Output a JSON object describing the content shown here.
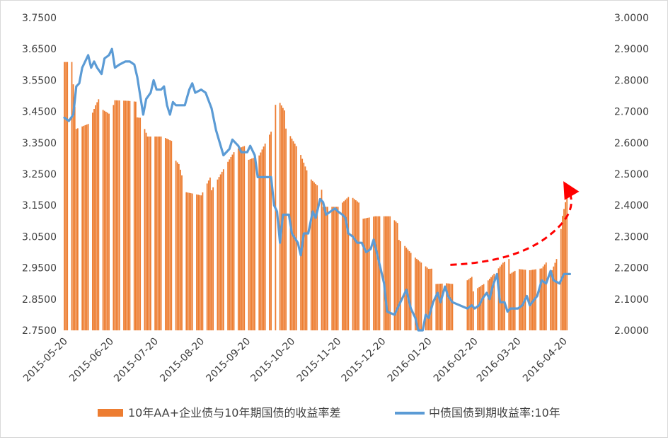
{
  "chart_data": {
    "type": "bar+line",
    "title": "",
    "x_ticks": [
      "2015-05-20",
      "2015-06-20",
      "2015-07-20",
      "2015-08-20",
      "2015-09-20",
      "2015-10-20",
      "2015-11-20",
      "2015-12-20",
      "2016-01-20",
      "2016-02-20",
      "2016-03-20",
      "2016-04-20"
    ],
    "y_left": {
      "ticks": [
        "2.7500",
        "2.8500",
        "2.9500",
        "3.0500",
        "3.1500",
        "3.2500",
        "3.3500",
        "3.4500",
        "3.5500",
        "3.6500",
        "3.7500"
      ],
      "range": [
        2.75,
        3.75
      ]
    },
    "y_right": {
      "ticks": [
        "2.0000",
        "2.1000",
        "2.2000",
        "2.3000",
        "2.4000",
        "2.5000",
        "2.6000",
        "2.7000",
        "2.8000",
        "2.9000",
        "3.0000"
      ],
      "range": [
        2.0,
        3.0
      ]
    },
    "grid": false,
    "legend_position": "bottom",
    "series": [
      {
        "name": "10年AA+企业债与10年期国债的收益率差",
        "kind": "bar",
        "axis": "left",
        "color": "#ED7D31",
        "keypoints": [
          {
            "x": "2015-05-20",
            "y": 3.63
          },
          {
            "x": "2015-05-25",
            "y": 3.62
          },
          {
            "x": "2015-05-28",
            "y": 3.4
          },
          {
            "x": "2015-06-05",
            "y": 3.4
          },
          {
            "x": "2015-06-10",
            "y": 3.45
          },
          {
            "x": "2015-06-14",
            "y": 3.48
          },
          {
            "x": "2015-06-20",
            "y": 3.45
          },
          {
            "x": "2015-06-23",
            "y": 3.49
          },
          {
            "x": "2015-07-02",
            "y": 3.47
          },
          {
            "x": "2015-07-10",
            "y": 3.45
          },
          {
            "x": "2015-07-15",
            "y": 3.38
          },
          {
            "x": "2015-07-25",
            "y": 3.36
          },
          {
            "x": "2015-08-01",
            "y": 3.33
          },
          {
            "x": "2015-08-05",
            "y": 3.3
          },
          {
            "x": "2015-08-10",
            "y": 3.2
          },
          {
            "x": "2015-08-20",
            "y": 3.17
          },
          {
            "x": "2015-08-28",
            "y": 3.23
          },
          {
            "x": "2015-09-05",
            "y": 3.28
          },
          {
            "x": "2015-09-12",
            "y": 3.32
          },
          {
            "x": "2015-09-20",
            "y": 3.32
          },
          {
            "x": "2015-09-28",
            "y": 3.32
          },
          {
            "x": "2015-10-06",
            "y": 3.38
          },
          {
            "x": "2015-10-07",
            "y": null
          },
          {
            "x": "2015-10-08",
            "y": 3.46
          },
          {
            "x": "2015-10-12",
            "y": 3.46
          },
          {
            "x": "2015-10-18",
            "y": 3.4
          },
          {
            "x": "2015-10-25",
            "y": 3.33
          },
          {
            "x": "2015-11-01",
            "y": 3.23
          },
          {
            "x": "2015-11-10",
            "y": 3.17
          },
          {
            "x": "2015-11-20",
            "y": 3.15
          },
          {
            "x": "2015-11-28",
            "y": 3.17
          },
          {
            "x": "2015-12-05",
            "y": 3.13
          },
          {
            "x": "2015-12-15",
            "y": 3.12
          },
          {
            "x": "2015-12-25",
            "y": 3.1
          },
          {
            "x": "2016-01-02",
            "y": 3.05
          },
          {
            "x": "2016-01-10",
            "y": 2.99
          },
          {
            "x": "2016-01-20",
            "y": 2.93
          },
          {
            "x": "2016-02-01",
            "y": 2.91
          },
          {
            "x": "2016-02-05",
            "y": 2.9
          },
          {
            "x": "2016-02-06",
            "y": null
          },
          {
            "x": "2016-02-13",
            "y": null
          },
          {
            "x": "2016-02-14",
            "y": 2.89
          },
          {
            "x": "2016-02-20",
            "y": 2.9
          },
          {
            "x": "2016-02-28",
            "y": 2.91
          },
          {
            "x": "2016-03-05",
            "y": 2.93
          },
          {
            "x": "2016-03-10",
            "y": 2.95
          },
          {
            "x": "2016-03-20",
            "y": 2.96
          },
          {
            "x": "2016-03-28",
            "y": 2.94
          },
          {
            "x": "2016-04-05",
            "y": 2.93
          },
          {
            "x": "2016-04-12",
            "y": 2.96
          },
          {
            "x": "2016-04-16",
            "y": 3.0
          },
          {
            "x": "2016-04-19",
            "y": 3.12
          },
          {
            "x": "2016-04-22",
            "y": 3.18
          }
        ]
      },
      {
        "name": "中债国债到期收益率:10年",
        "kind": "line",
        "axis": "right",
        "color": "#5B9BD5",
        "keypoints": [
          {
            "x": "2015-05-20",
            "y": 2.68
          },
          {
            "x": "2015-05-23",
            "y": 2.67
          },
          {
            "x": "2015-05-26",
            "y": 2.69
          },
          {
            "x": "2015-05-28",
            "y": 2.78
          },
          {
            "x": "2015-05-30",
            "y": 2.79
          },
          {
            "x": "2015-06-01",
            "y": 2.84
          },
          {
            "x": "2015-06-05",
            "y": 2.88
          },
          {
            "x": "2015-06-07",
            "y": 2.84
          },
          {
            "x": "2015-06-09",
            "y": 2.86
          },
          {
            "x": "2015-06-11",
            "y": 2.84
          },
          {
            "x": "2015-06-14",
            "y": 2.82
          },
          {
            "x": "2015-06-16",
            "y": 2.87
          },
          {
            "x": "2015-06-19",
            "y": 2.88
          },
          {
            "x": "2015-06-21",
            "y": 2.9
          },
          {
            "x": "2015-06-23",
            "y": 2.84
          },
          {
            "x": "2015-06-26",
            "y": 2.85
          },
          {
            "x": "2015-06-30",
            "y": 2.86
          },
          {
            "x": "2015-07-03",
            "y": 2.86
          },
          {
            "x": "2015-07-06",
            "y": 2.85
          },
          {
            "x": "2015-07-08",
            "y": 2.81
          },
          {
            "x": "2015-07-10",
            "y": 2.75
          },
          {
            "x": "2015-07-12",
            "y": 2.69
          },
          {
            "x": "2015-07-14",
            "y": 2.74
          },
          {
            "x": "2015-07-17",
            "y": 2.76
          },
          {
            "x": "2015-07-19",
            "y": 2.8
          },
          {
            "x": "2015-07-21",
            "y": 2.77
          },
          {
            "x": "2015-07-24",
            "y": 2.77
          },
          {
            "x": "2015-07-26",
            "y": 2.78
          },
          {
            "x": "2015-07-28",
            "y": 2.72
          },
          {
            "x": "2015-07-30",
            "y": 2.69
          },
          {
            "x": "2015-08-01",
            "y": 2.73
          },
          {
            "x": "2015-08-03",
            "y": 2.72
          },
          {
            "x": "2015-08-09",
            "y": 2.72
          },
          {
            "x": "2015-08-12",
            "y": 2.77
          },
          {
            "x": "2015-08-14",
            "y": 2.79
          },
          {
            "x": "2015-08-16",
            "y": 2.76
          },
          {
            "x": "2015-08-20",
            "y": 2.77
          },
          {
            "x": "2015-08-23",
            "y": 2.76
          },
          {
            "x": "2015-08-27",
            "y": 2.71
          },
          {
            "x": "2015-08-30",
            "y": 2.64
          },
          {
            "x": "2015-09-04",
            "y": 2.56
          },
          {
            "x": "2015-09-08",
            "y": 2.58
          },
          {
            "x": "2015-09-10",
            "y": 2.61
          },
          {
            "x": "2015-09-14",
            "y": 2.59
          },
          {
            "x": "2015-09-16",
            "y": 2.57
          },
          {
            "x": "2015-09-20",
            "y": 2.57
          },
          {
            "x": "2015-09-22",
            "y": 2.59
          },
          {
            "x": "2015-09-25",
            "y": 2.56
          },
          {
            "x": "2015-09-27",
            "y": 2.49
          },
          {
            "x": "2015-10-06",
            "y": 2.49
          },
          {
            "x": "2015-10-08",
            "y": 2.4
          },
          {
            "x": "2015-10-10",
            "y": 2.38
          },
          {
            "x": "2015-10-12",
            "y": 2.28
          },
          {
            "x": "2015-10-14",
            "y": 2.37
          },
          {
            "x": "2015-10-18",
            "y": 2.37
          },
          {
            "x": "2015-10-20",
            "y": 2.31
          },
          {
            "x": "2015-10-24",
            "y": 2.28
          },
          {
            "x": "2015-10-26",
            "y": 2.24
          },
          {
            "x": "2015-10-28",
            "y": 2.31
          },
          {
            "x": "2015-10-31",
            "y": 2.31
          },
          {
            "x": "2015-11-03",
            "y": 2.38
          },
          {
            "x": "2015-11-05",
            "y": 2.36
          },
          {
            "x": "2015-11-08",
            "y": 2.42
          },
          {
            "x": "2015-11-10",
            "y": 2.41
          },
          {
            "x": "2015-11-12",
            "y": 2.37
          },
          {
            "x": "2015-11-15",
            "y": 2.38
          },
          {
            "x": "2015-11-18",
            "y": 2.39
          },
          {
            "x": "2015-11-20",
            "y": 2.38
          },
          {
            "x": "2015-11-23",
            "y": 2.37
          },
          {
            "x": "2015-11-25",
            "y": 2.36
          },
          {
            "x": "2015-11-27",
            "y": 2.31
          },
          {
            "x": "2015-11-30",
            "y": 2.3
          },
          {
            "x": "2015-12-03",
            "y": 2.28
          },
          {
            "x": "2015-12-06",
            "y": 2.28
          },
          {
            "x": "2015-12-09",
            "y": 2.25
          },
          {
            "x": "2015-12-12",
            "y": 2.26
          },
          {
            "x": "2015-12-14",
            "y": 2.29
          },
          {
            "x": "2015-12-17",
            "y": 2.23
          },
          {
            "x": "2015-12-21",
            "y": 2.15
          },
          {
            "x": "2015-12-23",
            "y": 2.06
          },
          {
            "x": "2015-12-28",
            "y": 2.05
          },
          {
            "x": "2015-12-31",
            "y": 2.08
          },
          {
            "x": "2016-01-05",
            "y": 2.13
          },
          {
            "x": "2016-01-08",
            "y": 2.07
          },
          {
            "x": "2016-01-11",
            "y": 2.04
          },
          {
            "x": "2016-01-13",
            "y": 2.0
          },
          {
            "x": "2016-01-16",
            "y": 2.0
          },
          {
            "x": "2016-01-18",
            "y": 2.05
          },
          {
            "x": "2016-01-20",
            "y": 2.04
          },
          {
            "x": "2016-01-23",
            "y": 2.09
          },
          {
            "x": "2016-01-26",
            "y": 2.12
          },
          {
            "x": "2016-01-28",
            "y": 2.09
          },
          {
            "x": "2016-01-31",
            "y": 2.14
          },
          {
            "x": "2016-02-02",
            "y": 2.11
          },
          {
            "x": "2016-02-05",
            "y": 2.09
          },
          {
            "x": "2016-02-15",
            "y": 2.07
          },
          {
            "x": "2016-02-18",
            "y": 2.08
          },
          {
            "x": "2016-02-20",
            "y": 2.07
          },
          {
            "x": "2016-02-23",
            "y": 2.08
          },
          {
            "x": "2016-02-25",
            "y": 2.1
          },
          {
            "x": "2016-02-28",
            "y": 2.12
          },
          {
            "x": "2016-03-01",
            "y": 2.1
          },
          {
            "x": "2016-03-03",
            "y": 2.14
          },
          {
            "x": "2016-03-06",
            "y": 2.18
          },
          {
            "x": "2016-03-08",
            "y": 2.09
          },
          {
            "x": "2016-03-11",
            "y": 2.09
          },
          {
            "x": "2016-03-13",
            "y": 2.06
          },
          {
            "x": "2016-03-15",
            "y": 2.07
          },
          {
            "x": "2016-03-20",
            "y": 2.07
          },
          {
            "x": "2016-03-23",
            "y": 2.08
          },
          {
            "x": "2016-03-26",
            "y": 2.11
          },
          {
            "x": "2016-03-28",
            "y": 2.08
          },
          {
            "x": "2016-04-02",
            "y": 2.11
          },
          {
            "x": "2016-04-05",
            "y": 2.16
          },
          {
            "x": "2016-04-08",
            "y": 2.15
          },
          {
            "x": "2016-04-11",
            "y": 2.19
          },
          {
            "x": "2016-04-13",
            "y": 2.16
          },
          {
            "x": "2016-04-17",
            "y": 2.15
          },
          {
            "x": "2016-04-20",
            "y": 2.18
          },
          {
            "x": "2016-04-24",
            "y": 2.18
          }
        ]
      }
    ],
    "annotations": [
      {
        "kind": "dashed-arrow",
        "color": "#FF0000",
        "direction": "up-right",
        "from": {
          "x": "2016-02-05",
          "y_left": 2.955
        },
        "to": {
          "x": "2016-04-21",
          "y_left": 3.19
        }
      }
    ]
  }
}
